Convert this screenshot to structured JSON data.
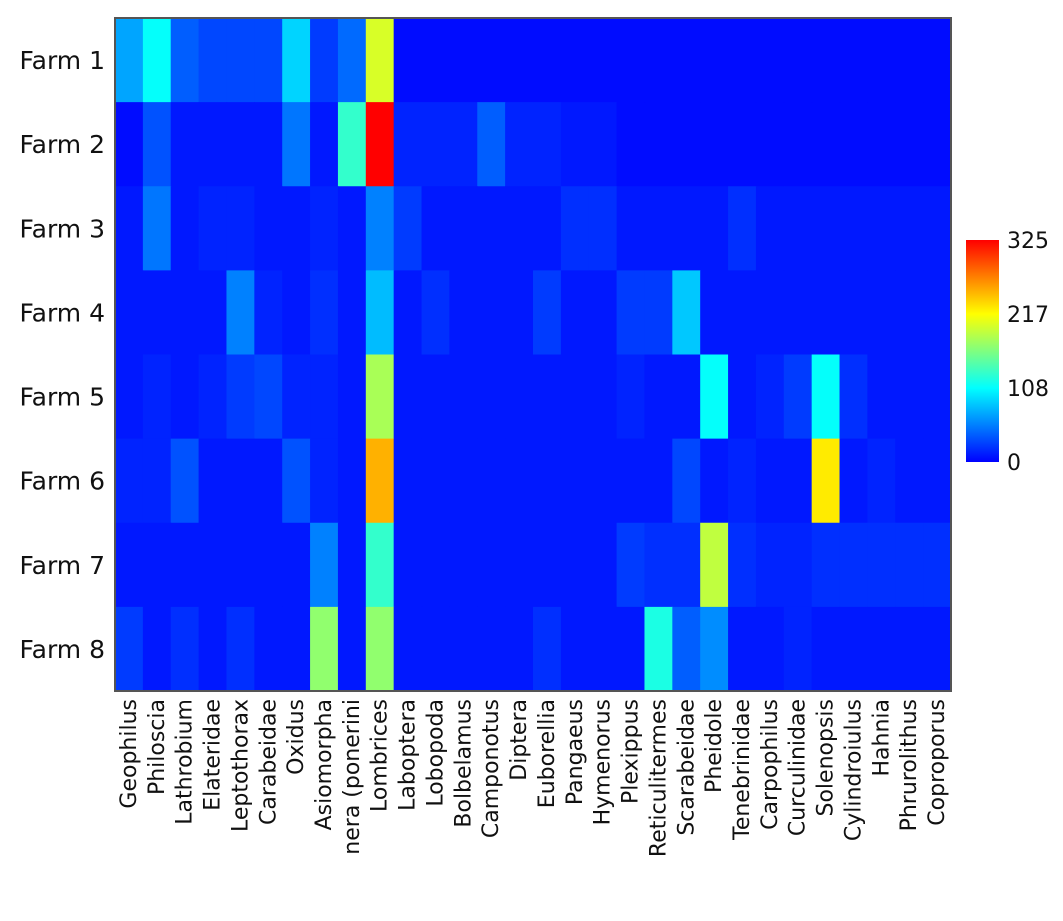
{
  "chart_data": {
    "type": "heatmap",
    "title": "",
    "xlabel": "",
    "ylabel": "",
    "rows": [
      "Farm 1",
      "Farm 2",
      "Farm 3",
      "Farm 4",
      "Farm 5",
      "Farm 6",
      "Farm 7",
      "Farm 8"
    ],
    "columns": [
      "Geophilus",
      "Philoscia",
      "Lathrobium",
      "Elateridae",
      "Leptothorax",
      "Carabeidae",
      "Oxidus",
      "Asiomorpha",
      "nera (ponerini",
      "Lombrices",
      "Laboptera",
      "Lobopoda",
      "Bolbelamus",
      "Camponotus",
      "Diptera",
      "Euborellia",
      "Pangaeus",
      "Hymenorus",
      "Plexippus",
      "Reticulitermes",
      "Scarabeidae",
      "Pheidole",
      "Tenebrinidae",
      "Carpophilus",
      "Curculinidae",
      "Solenopsis",
      "Cylindroiulus",
      "Hahnia",
      "Phrurolithus",
      "Coproporus"
    ],
    "values": [
      [
        70,
        110,
        40,
        30,
        30,
        30,
        90,
        25,
        45,
        200,
        5,
        5,
        5,
        5,
        5,
        5,
        5,
        5,
        5,
        5,
        5,
        5,
        5,
        5,
        5,
        5,
        5,
        5,
        5,
        5
      ],
      [
        5,
        35,
        10,
        10,
        10,
        10,
        50,
        10,
        130,
        325,
        15,
        15,
        15,
        40,
        15,
        15,
        10,
        10,
        5,
        5,
        5,
        5,
        5,
        5,
        5,
        5,
        5,
        5,
        5,
        5
      ],
      [
        10,
        50,
        10,
        15,
        15,
        10,
        10,
        15,
        10,
        55,
        25,
        10,
        10,
        10,
        10,
        10,
        20,
        20,
        10,
        10,
        10,
        10,
        20,
        10,
        10,
        10,
        10,
        10,
        10,
        10
      ],
      [
        10,
        10,
        10,
        10,
        55,
        15,
        10,
        20,
        10,
        80,
        10,
        20,
        10,
        10,
        10,
        25,
        10,
        10,
        25,
        25,
        85,
        10,
        10,
        10,
        10,
        10,
        10,
        10,
        10,
        10
      ],
      [
        10,
        15,
        10,
        15,
        25,
        30,
        15,
        15,
        10,
        180,
        10,
        10,
        10,
        10,
        10,
        10,
        10,
        10,
        15,
        10,
        10,
        110,
        10,
        15,
        25,
        110,
        20,
        10,
        10,
        10
      ],
      [
        15,
        15,
        35,
        10,
        10,
        10,
        35,
        15,
        10,
        250,
        10,
        10,
        10,
        10,
        10,
        10,
        10,
        10,
        10,
        10,
        30,
        10,
        15,
        10,
        10,
        225,
        10,
        15,
        10,
        10
      ],
      [
        10,
        10,
        10,
        10,
        10,
        10,
        10,
        55,
        10,
        130,
        10,
        10,
        10,
        10,
        10,
        10,
        10,
        10,
        25,
        20,
        20,
        190,
        20,
        15,
        15,
        20,
        20,
        20,
        20,
        20
      ],
      [
        25,
        10,
        20,
        10,
        20,
        10,
        10,
        170,
        10,
        170,
        10,
        10,
        10,
        10,
        10,
        20,
        10,
        10,
        10,
        120,
        40,
        60,
        10,
        10,
        15,
        10,
        10,
        10,
        10,
        10
      ]
    ],
    "colorbar": {
      "range": [
        0,
        325
      ],
      "ticks": [
        "0",
        "108",
        "217",
        "325"
      ],
      "colormap": "jet"
    }
  }
}
